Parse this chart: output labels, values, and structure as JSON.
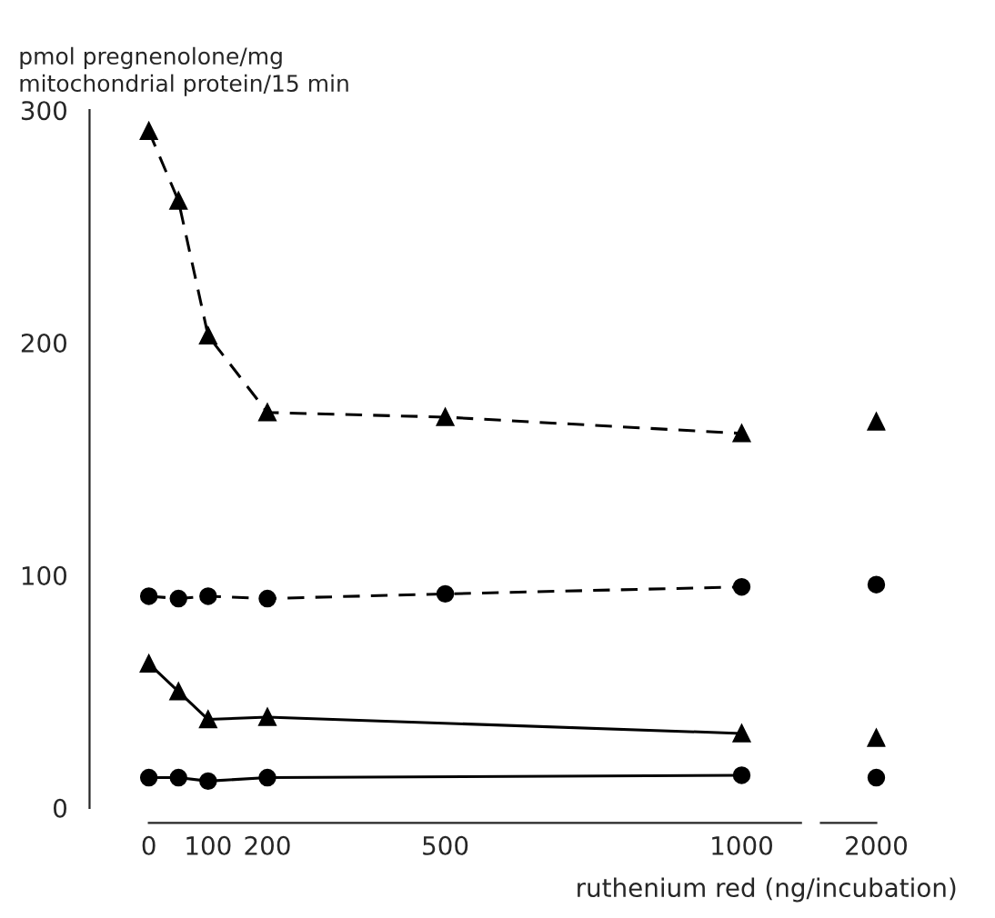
{
  "chart_data": [
    {
      "type": "line",
      "ylabel": "pmol pregnenolone/mg\nmitochondrial protein/15 min",
      "xlabel": "ruthenium red (ng/incubation)",
      "x": [
        0,
        50,
        100,
        200,
        500,
        1000
      ],
      "series": [
        {
          "color": "#000000",
          "marker": "triangle",
          "line_style": "dashed",
          "values": [
            291,
            261,
            203,
            170,
            168,
            161
          ]
        },
        {
          "color": "#000000",
          "marker": "circle",
          "line_style": "dashed",
          "values": [
            91,
            90,
            91,
            90,
            92,
            95
          ]
        },
        {
          "color": "#000000",
          "marker": "triangle",
          "line_style": "solid",
          "x": [
            0,
            50,
            100,
            200,
            1000
          ],
          "values": [
            62,
            50,
            38,
            39,
            32
          ]
        },
        {
          "color": "#000000",
          "marker": "circle",
          "line_style": "solid",
          "x": [
            0,
            50,
            100,
            200,
            1000
          ],
          "values": [
            13,
            13,
            11.5,
            13,
            14
          ]
        }
      ],
      "xlim": [
        -100,
        1100
      ],
      "ylim": [
        0,
        300
      ],
      "xticks": [
        0,
        100,
        200,
        500,
        1000
      ],
      "yticks": [
        0,
        100,
        200,
        300
      ],
      "grid": false,
      "legend": false
    },
    {
      "type": "line",
      "categories": [
        "2000"
      ],
      "series": [
        {
          "color": "#000000",
          "marker": "triangle",
          "line_style": "dashed",
          "values": [
            166
          ]
        },
        {
          "color": "#000000",
          "marker": "circle",
          "line_style": "dashed",
          "values": [
            96
          ]
        },
        {
          "color": "#000000",
          "marker": "triangle",
          "line_style": "solid",
          "values": [
            30
          ]
        },
        {
          "color": "#000000",
          "marker": "circle",
          "line_style": "solid",
          "values": [
            13
          ]
        }
      ],
      "ylim": [
        0,
        300
      ],
      "yticks": [
        0,
        100,
        200,
        300
      ],
      "tick_labels": "x",
      "grid": false,
      "legend": false
    }
  ]
}
